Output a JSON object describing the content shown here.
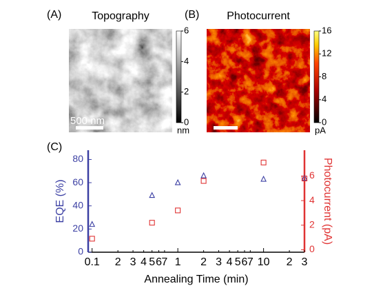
{
  "chart_data": [
    {
      "type": "image",
      "label": "(A)",
      "title": "Topography",
      "colormap": "gray",
      "colorbar": {
        "lim": [
          0,
          6
        ],
        "ticks": [
          0,
          2,
          4,
          6
        ],
        "unit": "nm"
      },
      "scalebar": "500 nm"
    },
    {
      "type": "image",
      "label": "(B)",
      "title": "Photocurrent",
      "colormap": "hot",
      "colorbar": {
        "lim": [
          0,
          16
        ],
        "ticks": [
          0,
          4,
          8,
          12,
          16
        ],
        "unit": "pA"
      }
    },
    {
      "type": "scatter",
      "label": "(C)",
      "x_label": "Annealing Time (min)",
      "y_label": "EQE (%)",
      "y2_label": "Photocurrent (pA)",
      "xscale": "log",
      "xlim": [
        0.09,
        30
      ],
      "xticks": [
        {
          "value": 0.1,
          "label": "0.1"
        },
        {
          "value": 0.2,
          "label": "2"
        },
        {
          "value": 0.3,
          "label": "3"
        },
        {
          "value": 0.4,
          "label": "4"
        },
        {
          "value": 0.5,
          "label": "5"
        },
        {
          "value": 0.6,
          "label": "6"
        },
        {
          "value": 0.7,
          "label": "7"
        },
        1,
        2,
        3,
        4,
        5,
        6,
        7,
        10,
        {
          "value": 20,
          "label": "2"
        },
        {
          "value": 30,
          "label": "3"
        }
      ],
      "ylim": [
        0,
        88
      ],
      "yticks": [
        0,
        20,
        40,
        60,
        80
      ],
      "y_color": "#3b3fa3",
      "y2lim": [
        -0.2,
        8.1
      ],
      "y2ticks": [
        0,
        2,
        4,
        6
      ],
      "y2_color": "#e03333",
      "series": [
        {
          "name": "EQE",
          "color": "#3b3fa3",
          "marker": "triangle",
          "x": [
            0.1,
            0.5,
            1,
            2,
            10,
            30
          ],
          "values": [
            24,
            49,
            60,
            66,
            63,
            64
          ]
        },
        {
          "name": "Photocurrent",
          "color": "#e03333",
          "marker": "square",
          "axis": "y2",
          "x": [
            0.1,
            0.5,
            1,
            2,
            10,
            30
          ],
          "values": [
            0.9,
            2.2,
            3.2,
            5.6,
            7.1,
            5.8
          ]
        }
      ]
    }
  ]
}
